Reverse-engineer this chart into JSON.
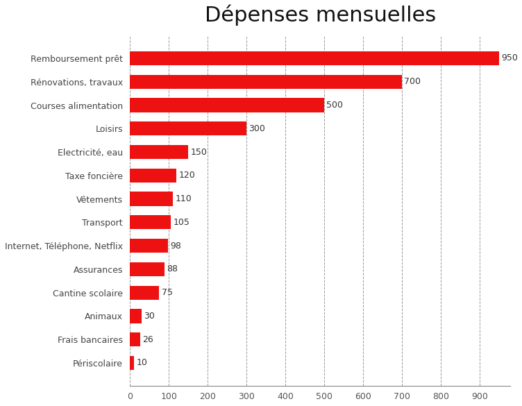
{
  "title": "Dépenses mensuelles",
  "categories": [
    "Périscolaire",
    "Frais bancaires",
    "Animaux",
    "Cantine scolaire",
    "Assurances",
    "Internet, Téléphone, Netflix",
    "Transport",
    "Vêtements",
    "Taxe foncière",
    "Electricité, eau",
    "Loisirs",
    "Courses alimentation",
    "Rénovations, travaux",
    "Remboursement prêt"
  ],
  "values": [
    10,
    26,
    30,
    75,
    88,
    98,
    105,
    110,
    120,
    150,
    300,
    500,
    700,
    950
  ],
  "bar_color": "#ee1111",
  "xlim": [
    0,
    980
  ],
  "xticks": [
    0,
    100,
    200,
    300,
    400,
    500,
    600,
    700,
    800,
    900
  ],
  "title_fontsize": 22,
  "label_fontsize": 9,
  "value_fontsize": 9,
  "background_color": "#ffffff",
  "grid_color": "#999999"
}
